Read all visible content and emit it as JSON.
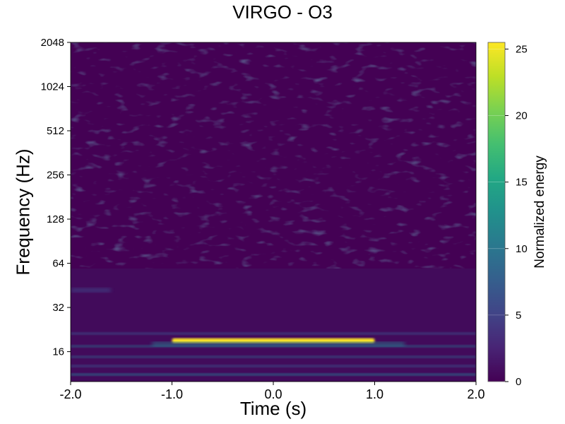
{
  "chart_data": {
    "type": "heatmap",
    "title": "VIRGO - O3",
    "xlabel": "Time (s)",
    "ylabel": "Frequency (Hz)",
    "xlim": [
      -2.0,
      2.0
    ],
    "ylim": [
      10,
      2048
    ],
    "yscale": "log2",
    "x_ticks": [
      -2.0,
      -1.0,
      0.0,
      1.0,
      2.0
    ],
    "x_tick_labels": [
      "-2.0",
      "-1.0",
      "0.0",
      "1.0",
      "2.0"
    ],
    "y_ticks": [
      16,
      32,
      64,
      128,
      256,
      512,
      1024,
      2048
    ],
    "y_tick_labels": [
      "16",
      "32",
      "64",
      "128",
      "256",
      "512",
      "1024",
      "2048"
    ],
    "grid": false,
    "colormap": "viridis",
    "colorbar": {
      "label": "Normalized energy",
      "range": [
        0,
        25.5
      ],
      "ticks": [
        0,
        5,
        10,
        15,
        20,
        25
      ],
      "tick_labels": [
        "0",
        "5",
        "10",
        "15",
        "20",
        "25"
      ]
    },
    "features": [
      {
        "t_start": -1.0,
        "t_end": 1.0,
        "freq_hz": 19,
        "energy": 25
      },
      {
        "t_start": -1.2,
        "t_end": 1.3,
        "freq_hz": 18,
        "energy": 10
      },
      {
        "t_start": -2.0,
        "t_end": -1.6,
        "freq_hz": 42,
        "energy": 6
      }
    ]
  }
}
